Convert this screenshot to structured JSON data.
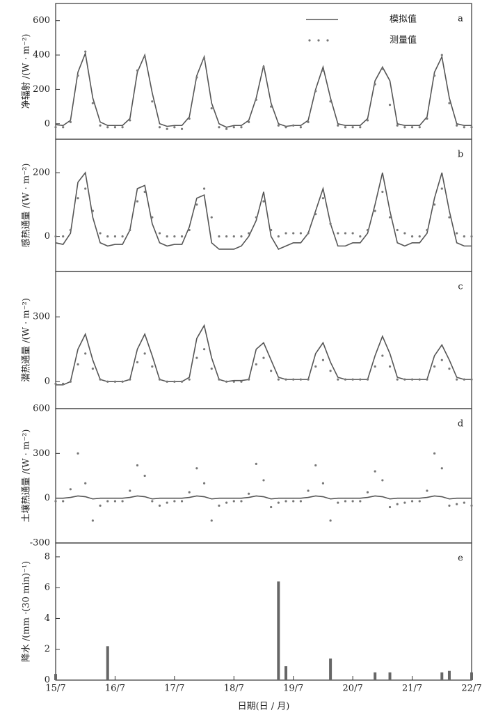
{
  "chart_data": [
    {
      "type": "line",
      "panel": "a",
      "ylabel": "净辐射 /(W · m⁻²)",
      "xlim": [
        0,
        7
      ],
      "ylim": [
        -90,
        700
      ],
      "yticks": [
        0,
        200,
        400,
        600
      ],
      "x": [
        0,
        0.125,
        0.25,
        0.375,
        0.5,
        0.625,
        0.75,
        0.875,
        1,
        1.125,
        1.25,
        1.375,
        1.5,
        1.625,
        1.75,
        1.875,
        2,
        2.125,
        2.25,
        2.375,
        2.5,
        2.625,
        2.75,
        2.875,
        3,
        3.125,
        3.25,
        3.375,
        3.5,
        3.625,
        3.75,
        3.875,
        4,
        4.125,
        4.25,
        4.375,
        4.5,
        4.625,
        4.75,
        4.875,
        5,
        5.125,
        5.25,
        5.375,
        5.5,
        5.625,
        5.75,
        5.875,
        6,
        6.125,
        6.25,
        6.375,
        6.5,
        6.625,
        6.75,
        6.875,
        7
      ],
      "series": [
        {
          "name": "模拟值",
          "mode": "line",
          "color": "#555555",
          "values": [
            -5,
            -10,
            20,
            300,
            410,
            150,
            10,
            -10,
            -10,
            -10,
            30,
            300,
            400,
            180,
            0,
            -15,
            -10,
            -10,
            40,
            280,
            390,
            120,
            0,
            -20,
            -10,
            -10,
            20,
            150,
            340,
            120,
            0,
            -15,
            -10,
            -10,
            20,
            200,
            330,
            150,
            0,
            -10,
            -10,
            -10,
            30,
            250,
            330,
            250,
            0,
            -10,
            -10,
            -10,
            40,
            300,
            390,
            150,
            0,
            -10,
            -10
          ]
        },
        {
          "name": "测量值",
          "mode": "markers",
          "color": "#777777",
          "values": [
            -20,
            -20,
            10,
            280,
            420,
            120,
            -10,
            -20,
            -20,
            -20,
            20,
            310,
            390,
            130,
            -20,
            -30,
            -20,
            -30,
            30,
            270,
            380,
            90,
            -20,
            -30,
            -20,
            -20,
            10,
            140,
            330,
            100,
            -10,
            -20,
            -10,
            -20,
            10,
            190,
            310,
            130,
            -10,
            -20,
            -20,
            -20,
            20,
            230,
            320,
            110,
            -10,
            -20,
            -20,
            -20,
            30,
            280,
            400,
            120,
            -10,
            -20,
            -20
          ]
        }
      ]
    },
    {
      "type": "line",
      "panel": "b",
      "ylabel": "感热通量 /(W · m⁻²)",
      "xlim": [
        0,
        7
      ],
      "ylim": [
        -110,
        305
      ],
      "yticks": [
        0,
        200
      ],
      "x": [
        0,
        0.125,
        0.25,
        0.375,
        0.5,
        0.625,
        0.75,
        0.875,
        1,
        1.125,
        1.25,
        1.375,
        1.5,
        1.625,
        1.75,
        1.875,
        2,
        2.125,
        2.25,
        2.375,
        2.5,
        2.625,
        2.75,
        2.875,
        3,
        3.125,
        3.25,
        3.375,
        3.5,
        3.625,
        3.75,
        3.875,
        4,
        4.125,
        4.25,
        4.375,
        4.5,
        4.625,
        4.75,
        4.875,
        5,
        5.125,
        5.25,
        5.375,
        5.5,
        5.625,
        5.75,
        5.875,
        6,
        6.125,
        6.25,
        6.375,
        6.5,
        6.625,
        6.75,
        6.875,
        7
      ],
      "series": [
        {
          "mode": "line",
          "color": "#555555",
          "values": [
            -20,
            -25,
            10,
            170,
            200,
            60,
            -20,
            -30,
            -25,
            -25,
            20,
            150,
            160,
            40,
            -20,
            -30,
            -25,
            -25,
            30,
            120,
            130,
            -20,
            -40,
            -40,
            -40,
            -30,
            0,
            50,
            140,
            0,
            -40,
            -30,
            -20,
            -20,
            10,
            80,
            150,
            40,
            -30,
            -30,
            -20,
            -20,
            10,
            100,
            200,
            80,
            -20,
            -30,
            -20,
            -20,
            10,
            120,
            200,
            80,
            -20,
            -30,
            -30
          ]
        },
        {
          "mode": "markers",
          "color": "#777777",
          "values": [
            0,
            0,
            20,
            120,
            150,
            80,
            10,
            0,
            0,
            0,
            20,
            110,
            140,
            60,
            10,
            0,
            0,
            0,
            20,
            100,
            150,
            60,
            0,
            0,
            0,
            0,
            10,
            60,
            110,
            20,
            0,
            10,
            10,
            10,
            10,
            70,
            120,
            40,
            10,
            10,
            10,
            0,
            20,
            80,
            140,
            60,
            20,
            10,
            0,
            0,
            20,
            100,
            150,
            60,
            10,
            0,
            0
          ]
        }
      ]
    },
    {
      "type": "line",
      "panel": "c",
      "ylabel": "潜热通量 /(W · m⁻²)",
      "xlim": [
        0,
        7
      ],
      "ylim": [
        -125,
        510
      ],
      "yticks": [
        0,
        300
      ],
      "x": [
        0,
        0.125,
        0.25,
        0.375,
        0.5,
        0.625,
        0.75,
        0.875,
        1,
        1.125,
        1.25,
        1.375,
        1.5,
        1.625,
        1.75,
        1.875,
        2,
        2.125,
        2.25,
        2.375,
        2.5,
        2.625,
        2.75,
        2.875,
        3,
        3.125,
        3.25,
        3.375,
        3.5,
        3.625,
        3.75,
        3.875,
        4,
        4.125,
        4.25,
        4.375,
        4.5,
        4.625,
        4.75,
        4.875,
        5,
        5.125,
        5.25,
        5.375,
        5.5,
        5.625,
        5.75,
        5.875,
        6,
        6.125,
        6.25,
        6.375,
        6.5,
        6.625,
        6.75,
        6.875,
        7
      ],
      "series": [
        {
          "mode": "line",
          "color": "#555555",
          "values": [
            -15,
            -15,
            0,
            150,
            220,
            100,
            10,
            0,
            0,
            0,
            10,
            150,
            220,
            120,
            10,
            0,
            0,
            0,
            20,
            200,
            260,
            110,
            10,
            0,
            5,
            5,
            10,
            150,
            180,
            100,
            20,
            10,
            10,
            10,
            10,
            130,
            180,
            90,
            20,
            10,
            10,
            10,
            10,
            120,
            210,
            130,
            20,
            10,
            10,
            10,
            10,
            120,
            170,
            100,
            20,
            10,
            10
          ]
        },
        {
          "mode": "markers",
          "color": "#777777",
          "values": [
            -10,
            -10,
            0,
            80,
            130,
            60,
            10,
            0,
            0,
            0,
            10,
            90,
            130,
            70,
            10,
            0,
            0,
            0,
            10,
            110,
            150,
            60,
            10,
            0,
            0,
            0,
            10,
            80,
            110,
            50,
            10,
            10,
            10,
            10,
            10,
            70,
            100,
            50,
            10,
            10,
            10,
            10,
            10,
            70,
            120,
            70,
            10,
            10,
            10,
            10,
            10,
            70,
            100,
            60,
            10,
            10,
            10
          ]
        }
      ]
    },
    {
      "type": "line",
      "panel": "d",
      "ylabel": "土壤热通量 /(W · m⁻²)",
      "xlim": [
        0,
        7
      ],
      "ylim": [
        -300,
        600
      ],
      "yticks": [
        -300,
        0,
        300,
        600
      ],
      "x": [
        0,
        0.125,
        0.25,
        0.375,
        0.5,
        0.625,
        0.75,
        0.875,
        1,
        1.125,
        1.25,
        1.375,
        1.5,
        1.625,
        1.75,
        1.875,
        2,
        2.125,
        2.25,
        2.375,
        2.5,
        2.625,
        2.75,
        2.875,
        3,
        3.125,
        3.25,
        3.375,
        3.5,
        3.625,
        3.75,
        3.875,
        4,
        4.125,
        4.25,
        4.375,
        4.5,
        4.625,
        4.75,
        4.875,
        5,
        5.125,
        5.25,
        5.375,
        5.5,
        5.625,
        5.75,
        5.875,
        6,
        6.125,
        6.25,
        6.375,
        6.5,
        6.625,
        6.75,
        6.875,
        7
      ],
      "series": [
        {
          "mode": "line",
          "color": "#555555",
          "values": [
            0,
            0,
            5,
            15,
            10,
            -5,
            0,
            0,
            0,
            0,
            5,
            15,
            10,
            -5,
            0,
            0,
            0,
            0,
            5,
            15,
            10,
            -5,
            0,
            0,
            0,
            0,
            5,
            15,
            10,
            -5,
            0,
            0,
            0,
            0,
            5,
            15,
            10,
            -5,
            0,
            0,
            0,
            0,
            5,
            15,
            10,
            -5,
            0,
            0,
            0,
            0,
            5,
            15,
            10,
            -5,
            0,
            0,
            0
          ]
        },
        {
          "mode": "markers",
          "color": "#777777",
          "values": [
            -20,
            -20,
            60,
            300,
            100,
            -150,
            -50,
            -20,
            -20,
            -20,
            50,
            220,
            150,
            -20,
            -50,
            -30,
            -20,
            -20,
            40,
            200,
            100,
            -150,
            -50,
            -30,
            -20,
            -20,
            30,
            230,
            120,
            -60,
            -30,
            -20,
            -20,
            -20,
            50,
            220,
            100,
            -150,
            -30,
            -20,
            -20,
            -20,
            40,
            180,
            120,
            -60,
            -40,
            -30,
            -20,
            -20,
            50,
            300,
            200,
            -50,
            -40,
            -30,
            -50
          ]
        }
      ]
    },
    {
      "type": "bar",
      "panel": "e",
      "ylabel": "降水 /(mm ·(30 min)⁻¹)",
      "xlabel": "日期(日 / 月)",
      "xlim": [
        0,
        7
      ],
      "ylim": [
        0,
        8.9
      ],
      "yticks": [
        0,
        2,
        4,
        6,
        8
      ],
      "xticks": [
        {
          "value": 0,
          "label": "15/7"
        },
        {
          "value": 1,
          "label": "16/7"
        },
        {
          "value": 2,
          "label": "17/7"
        },
        {
          "value": 3,
          "label": "18/7"
        },
        {
          "value": 4,
          "label": "19/7"
        },
        {
          "value": 5,
          "label": "20/7"
        },
        {
          "value": 6,
          "label": "21/7"
        },
        {
          "value": 7,
          "label": "22/7"
        }
      ],
      "x": [
        0,
        0.125,
        0.25,
        0.375,
        0.5,
        0.625,
        0.75,
        0.875,
        1,
        1.125,
        1.25,
        1.375,
        1.5,
        1.625,
        1.75,
        1.875,
        2,
        2.125,
        2.25,
        2.375,
        2.5,
        2.625,
        2.75,
        2.875,
        3,
        3.125,
        3.25,
        3.375,
        3.5,
        3.625,
        3.75,
        3.875,
        4,
        4.125,
        4.25,
        4.375,
        4.5,
        4.625,
        4.75,
        4.875,
        5,
        5.125,
        5.25,
        5.375,
        5.5,
        5.625,
        5.75,
        5.875,
        6,
        6.125,
        6.25,
        6.375,
        6.5,
        6.625,
        6.75,
        6.875,
        7
      ],
      "color": "#666666",
      "values": [
        0.4,
        0,
        0,
        0,
        0,
        0,
        0,
        2.2,
        0,
        0,
        0,
        0,
        0,
        0,
        0,
        0,
        0,
        0,
        0,
        0,
        0,
        0,
        0,
        0,
        0,
        0,
        0,
        0,
        0,
        0,
        6.4,
        0.9,
        0,
        0,
        0,
        0,
        0,
        1.4,
        0,
        0,
        0,
        0,
        0,
        0.5,
        0,
        0.5,
        0,
        0,
        0,
        0,
        0,
        0,
        0.5,
        0.6,
        0,
        0,
        0.5
      ]
    }
  ]
}
